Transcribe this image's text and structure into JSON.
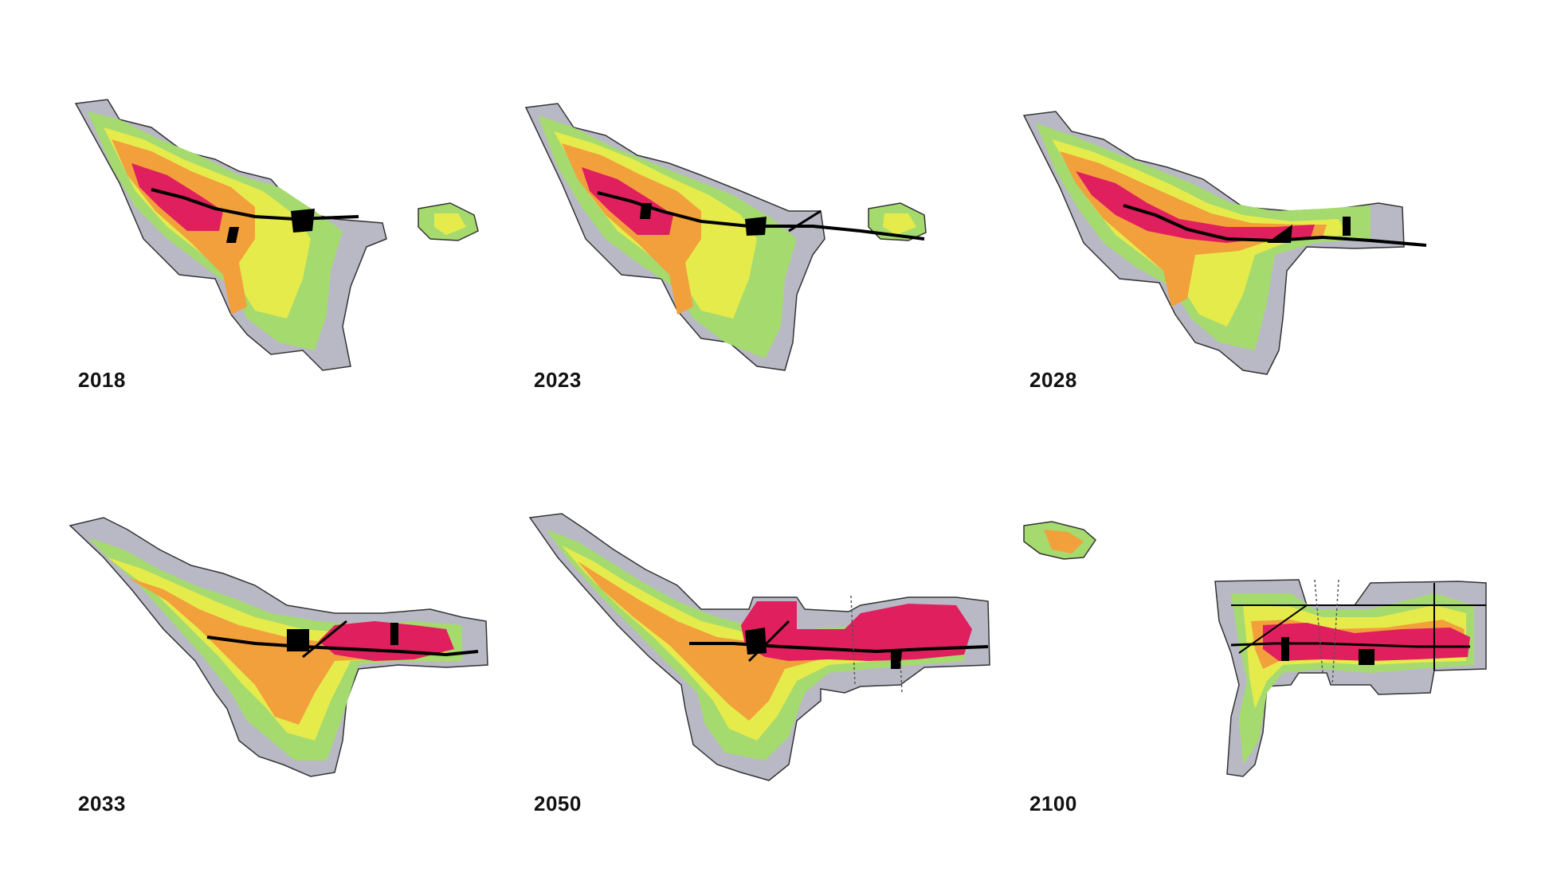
{
  "figure": {
    "panels": [
      {
        "id": "p2018",
        "year": "2018"
      },
      {
        "id": "p2023",
        "year": "2023"
      },
      {
        "id": "p2028",
        "year": "2028"
      },
      {
        "id": "p2033",
        "year": "2033"
      },
      {
        "id": "p2050",
        "year": "2050"
      },
      {
        "id": "p2100",
        "year": "2100"
      }
    ]
  },
  "colors": {
    "background": "#ffffff",
    "outline": "#333333",
    "transit_line": "#000000",
    "scale": [
      "#b9b9c6",
      "#a5da6e",
      "#e6eb4c",
      "#f2a03c",
      "#e01f5e"
    ]
  }
}
